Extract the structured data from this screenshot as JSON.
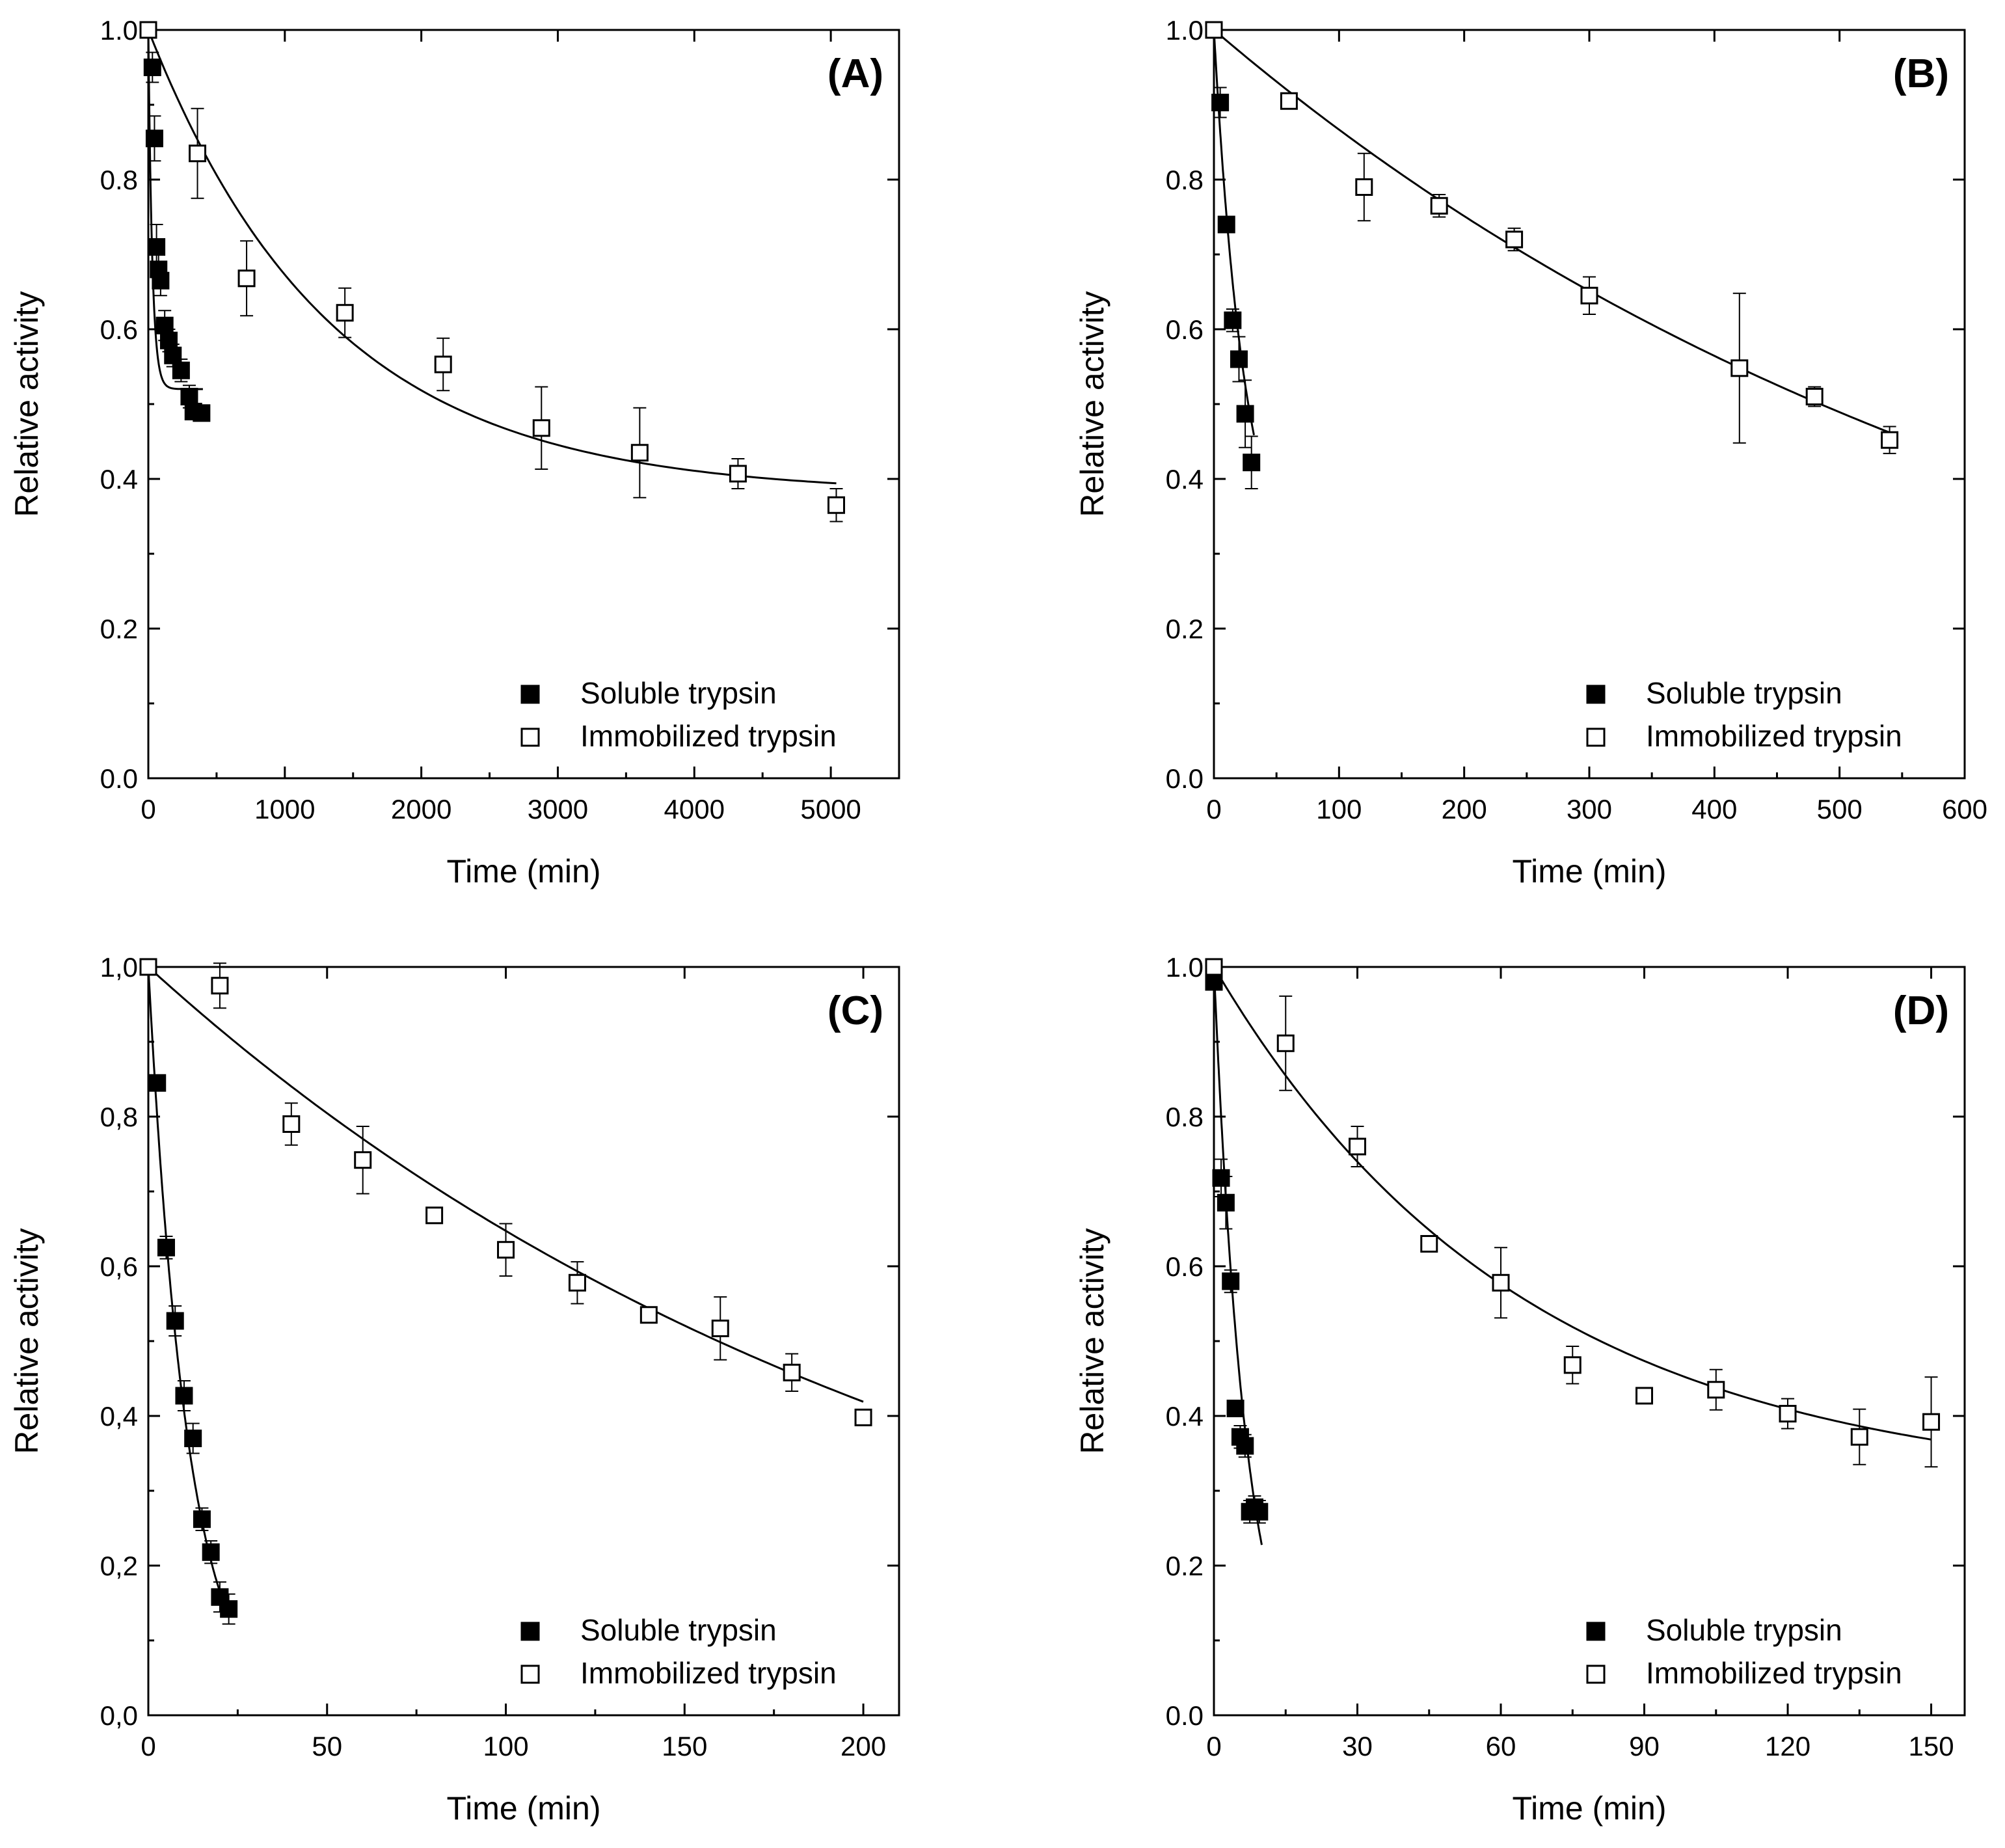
{
  "chart_data": [
    {
      "type": "scatter",
      "panel_label": "(A)",
      "xlabel": "Time (min)",
      "ylabel": "Relative activity",
      "xlim": [
        0,
        5500
      ],
      "ylim": [
        0,
        1.0
      ],
      "xticks": [
        0,
        1000,
        2000,
        3000,
        4000,
        5000
      ],
      "xtick_labels": [
        "0",
        "1000",
        "2000",
        "3000",
        "4000",
        "5000"
      ],
      "yticks": [
        0,
        0.2,
        0.4,
        0.6,
        0.8,
        1.0
      ],
      "ytick_labels": [
        "0.0",
        "0.2",
        "0.4",
        "0.6",
        "0.8",
        "1.0"
      ],
      "legend_position": "bottom-right",
      "series": [
        {
          "name": "Soluble trypsin",
          "marker": "filled-square",
          "x": [
            0,
            30,
            45,
            60,
            75,
            90,
            120,
            150,
            180,
            240,
            300,
            330,
            390
          ],
          "y": [
            1.0,
            0.95,
            0.855,
            0.71,
            0.68,
            0.665,
            0.605,
            0.585,
            0.565,
            0.545,
            0.51,
            0.49,
            0.488
          ],
          "err": [
            0,
            0.02,
            0.03,
            0.03,
            0.02,
            0.02,
            0.02,
            0.015,
            0.015,
            0.015,
            0.015,
            0.01,
            0.01
          ],
          "fit": {
            "model": "exp_decay",
            "a": 0.48,
            "k": 0.035,
            "c": 0.52,
            "x_end": 400
          }
        },
        {
          "name": "Immobilized trypsin",
          "marker": "open-square",
          "x": [
            0,
            360,
            720,
            1440,
            2160,
            2880,
            3600,
            4320,
            5040
          ],
          "y": [
            1.0,
            0.835,
            0.668,
            0.622,
            0.553,
            0.468,
            0.435,
            0.407,
            0.365
          ],
          "err": [
            0,
            0.06,
            0.05,
            0.033,
            0.035,
            0.055,
            0.06,
            0.02,
            0.022
          ],
          "fit": {
            "model": "exp_decay",
            "a": 0.62,
            "k": 0.00075,
            "c": 0.38,
            "x_end": 5040
          }
        }
      ]
    },
    {
      "type": "scatter",
      "panel_label": "(B)",
      "xlabel": "Time (min)",
      "ylabel": "Relative activity",
      "xlim": [
        0,
        600
      ],
      "ylim": [
        0,
        1.0
      ],
      "xticks": [
        0,
        100,
        200,
        300,
        400,
        500,
        600
      ],
      "xtick_labels": [
        "0",
        "100",
        "200",
        "300",
        "400",
        "500",
        "600"
      ],
      "yticks": [
        0,
        0.2,
        0.4,
        0.6,
        0.8,
        1.0
      ],
      "ytick_labels": [
        "0.0",
        "0.2",
        "0.4",
        "0.6",
        "0.8",
        "1.0"
      ],
      "legend_position": "bottom-right",
      "series": [
        {
          "name": "Soluble trypsin",
          "marker": "filled-square",
          "x": [
            0,
            5,
            10,
            15,
            20,
            25,
            30
          ],
          "y": [
            1.0,
            0.903,
            0.74,
            0.612,
            0.56,
            0.487,
            0.422
          ],
          "err": [
            0,
            0.02,
            0.01,
            0.015,
            0.03,
            0.045,
            0.035
          ],
          "fit": {
            "model": "exp_decay",
            "a": 0.75,
            "k": 0.04,
            "c": 0.25,
            "x_end": 32
          }
        },
        {
          "name": "Immobilized trypsin",
          "marker": "open-square",
          "x": [
            0,
            60,
            120,
            180,
            240,
            300,
            420,
            480,
            540
          ],
          "y": [
            1.0,
            0.905,
            0.79,
            0.765,
            0.72,
            0.645,
            0.548,
            0.51,
            0.452
          ],
          "err": [
            0,
            0.01,
            0.045,
            0.015,
            0.015,
            0.025,
            0.1,
            0.013,
            0.018
          ],
          "fit": {
            "model": "exp_decay",
            "a": 1.0,
            "k": 0.00143,
            "c": 0.0,
            "x_end": 540
          }
        }
      ]
    },
    {
      "type": "scatter",
      "panel_label": "(C)",
      "xlabel": "Time (min)",
      "ylabel": "Relative activity",
      "xlim": [
        0,
        210
      ],
      "ylim": [
        0,
        1.0
      ],
      "xticks": [
        0,
        50,
        100,
        150,
        200
      ],
      "xtick_labels": [
        "0",
        "50",
        "100",
        "150",
        "200"
      ],
      "yticks": [
        0,
        0.2,
        0.4,
        0.6,
        0.8,
        1.0
      ],
      "ytick_labels": [
        "0,0",
        "0,2",
        "0,4",
        "0,6",
        "0,8",
        "1,0"
      ],
      "legend_position": "bottom-right",
      "series": [
        {
          "name": "Soluble trypsin",
          "marker": "filled-square",
          "x": [
            0,
            2.5,
            5,
            7.5,
            10,
            12.5,
            15,
            17.5,
            20,
            22.5
          ],
          "y": [
            1.0,
            0.845,
            0.625,
            0.527,
            0.427,
            0.37,
            0.262,
            0.218,
            0.158,
            0.142
          ],
          "err": [
            0,
            0.01,
            0.015,
            0.02,
            0.02,
            0.02,
            0.015,
            0.015,
            0.02,
            0.02
          ],
          "fit": {
            "model": "exp_decay",
            "a": 1.0,
            "k": 0.09,
            "c": 0.0,
            "x_end": 22.5
          }
        },
        {
          "name": "Immobilized trypsin",
          "marker": "open-square",
          "x": [
            0,
            20,
            40,
            60,
            80,
            100,
            120,
            140,
            160,
            180,
            200
          ],
          "y": [
            1.0,
            0.975,
            0.79,
            0.742,
            0.668,
            0.622,
            0.578,
            0.535,
            0.517,
            0.458,
            0.398
          ],
          "err": [
            0,
            0.03,
            0.028,
            0.045,
            0.01,
            0.035,
            0.028,
            0.008,
            0.042,
            0.025,
            0.01
          ],
          "fit": {
            "model": "exp_decay",
            "a": 1.0,
            "k": 0.00435,
            "c": 0.0,
            "x_end": 200
          }
        }
      ]
    },
    {
      "type": "scatter",
      "panel_label": "(D)",
      "xlabel": "Time (min)",
      "ylabel": "Relative activity",
      "xlim": [
        0,
        157
      ],
      "ylim": [
        0,
        1.0
      ],
      "xticks": [
        0,
        30,
        60,
        90,
        120,
        150
      ],
      "xtick_labels": [
        "0",
        "30",
        "60",
        "90",
        "120",
        "150"
      ],
      "yticks": [
        0,
        0.2,
        0.4,
        0.6,
        0.8,
        1.0
      ],
      "ytick_labels": [
        "0.0",
        "0.2",
        "0.4",
        "0.6",
        "0.8",
        "1.0"
      ],
      "legend_position": "bottom-right",
      "series": [
        {
          "name": "Soluble trypsin",
          "marker": "filled-square",
          "x": [
            0,
            1.5,
            2.5,
            3.5,
            4.5,
            5.5,
            6.5,
            7.5,
            8.5,
            9.5
          ],
          "y": [
            0.98,
            0.718,
            0.685,
            0.58,
            0.41,
            0.372,
            0.36,
            0.272,
            0.278,
            0.272
          ],
          "err": [
            0,
            0.025,
            0.035,
            0.015,
            0.01,
            0.015,
            0.015,
            0.015,
            0.015,
            0.015
          ],
          "fit": {
            "model": "exp_decay",
            "a": 1.0,
            "k": 0.148,
            "c": 0.0,
            "x_end": 10
          }
        },
        {
          "name": "Immobilized trypsin",
          "marker": "open-square",
          "x": [
            0,
            15,
            30,
            45,
            60,
            75,
            90,
            105,
            120,
            135,
            150
          ],
          "y": [
            1.0,
            0.898,
            0.76,
            0.63,
            0.578,
            0.468,
            0.427,
            0.435,
            0.403,
            0.372,
            0.392
          ],
          "err": [
            0,
            0.063,
            0.027,
            0.01,
            0.047,
            0.025,
            0.01,
            0.027,
            0.02,
            0.037,
            0.06
          ],
          "fit": {
            "model": "exp_decay",
            "a": 0.7,
            "k": 0.0155,
            "c": 0.3,
            "x_end": 150
          }
        }
      ]
    }
  ]
}
